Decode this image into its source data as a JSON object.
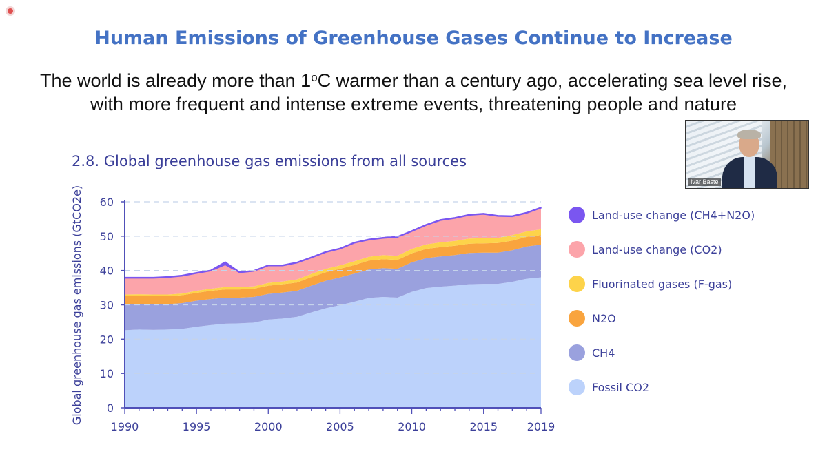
{
  "slide": {
    "title": "Human Emissions of Greenhouse Gases Continue to Increase",
    "subtitle_line1_pre": "The world is already more than 1",
    "subtitle_sup": "o",
    "subtitle_line1_post": "C warmer than a century ago, accelerating sea level rise,",
    "subtitle_line2": "with more frequent and intense extreme events, threatening people and nature"
  },
  "video": {
    "participant_name": "Ivar Baste"
  },
  "colors": {
    "title": "#4472c4",
    "chart_text": "#3b3f99",
    "axis": "#5050b8",
    "grid": "#c5d3ea"
  },
  "chart_data": {
    "type": "area",
    "stacked": true,
    "title": "2.8.  Global greenhouse gas emissions from all sources",
    "xlabel": "",
    "ylabel": "Global greenhouse gas emissions (GtCO2e)",
    "xlim": [
      1990,
      2019
    ],
    "ylim": [
      0,
      60
    ],
    "x_ticks": [
      1990,
      1995,
      2000,
      2005,
      2010,
      2015,
      2019
    ],
    "y_ticks": [
      0,
      10,
      20,
      30,
      40,
      50,
      60
    ],
    "grid": "horizontal dashed",
    "legend_position": "right",
    "x": [
      1990,
      1991,
      1992,
      1993,
      1994,
      1995,
      1996,
      1997,
      1998,
      1999,
      2000,
      2001,
      2002,
      2003,
      2004,
      2005,
      2006,
      2007,
      2008,
      2009,
      2010,
      2011,
      2012,
      2013,
      2014,
      2015,
      2016,
      2017,
      2018,
      2019
    ],
    "series": [
      {
        "name": "Fossil CO2",
        "color": "#bcd2fb",
        "values": [
          22.6,
          22.8,
          22.7,
          22.8,
          23.0,
          23.6,
          24.1,
          24.5,
          24.6,
          24.8,
          25.7,
          26.0,
          26.5,
          27.8,
          29.0,
          29.9,
          30.9,
          32.0,
          32.3,
          32.1,
          33.8,
          34.9,
          35.3,
          35.6,
          36.0,
          36.1,
          36.1,
          36.7,
          37.6,
          38.0
        ]
      },
      {
        "name": "CH4",
        "color": "#9aa1de",
        "values": [
          7.6,
          7.5,
          7.5,
          7.4,
          7.5,
          7.6,
          7.6,
          7.6,
          7.5,
          7.5,
          7.5,
          7.6,
          7.6,
          7.8,
          8.0,
          8.1,
          8.2,
          8.3,
          8.4,
          8.4,
          8.6,
          8.7,
          8.8,
          8.9,
          9.1,
          9.1,
          9.1,
          9.2,
          9.4,
          9.5
        ]
      },
      {
        "name": "N2O",
        "color": "#f9a43e",
        "values": [
          2.3,
          2.3,
          2.3,
          2.3,
          2.3,
          2.3,
          2.4,
          2.4,
          2.4,
          2.4,
          2.4,
          2.4,
          2.4,
          2.5,
          2.5,
          2.5,
          2.5,
          2.6,
          2.6,
          2.6,
          2.6,
          2.7,
          2.7,
          2.7,
          2.7,
          2.7,
          2.8,
          2.8,
          2.8,
          2.8
        ]
      },
      {
        "name": "Fluorinated gases (F-gas)",
        "color": "#fdd34a",
        "values": [
          0.5,
          0.5,
          0.5,
          0.5,
          0.5,
          0.6,
          0.6,
          0.7,
          0.7,
          0.7,
          0.8,
          0.8,
          0.9,
          0.9,
          1.0,
          1.0,
          1.1,
          1.1,
          1.2,
          1.2,
          1.3,
          1.3,
          1.4,
          1.4,
          1.5,
          1.5,
          1.5,
          1.6,
          1.6,
          1.7
        ]
      },
      {
        "name": "Land-use change (CO2)",
        "color": "#fca4aa",
        "values": [
          4.8,
          4.7,
          4.8,
          5.0,
          5.1,
          5.1,
          5.2,
          6.5,
          4.2,
          4.4,
          5.0,
          4.6,
          4.8,
          4.7,
          4.8,
          4.8,
          5.3,
          4.9,
          4.9,
          5.4,
          5.1,
          5.6,
          6.4,
          6.6,
          6.8,
          7.0,
          6.3,
          5.4,
          5.3,
          6.2
        ]
      },
      {
        "name": "Land-use change (CH4+N2O)",
        "color": "#7a56f0",
        "values": [
          0.2,
          0.2,
          0.2,
          0.2,
          0.2,
          0.2,
          0.2,
          0.8,
          0.2,
          0.2,
          0.2,
          0.2,
          0.2,
          0.2,
          0.2,
          0.2,
          0.2,
          0.2,
          0.2,
          0.2,
          0.2,
          0.2,
          0.2,
          0.2,
          0.2,
          0.2,
          0.2,
          0.2,
          0.2,
          0.2
        ]
      }
    ]
  }
}
